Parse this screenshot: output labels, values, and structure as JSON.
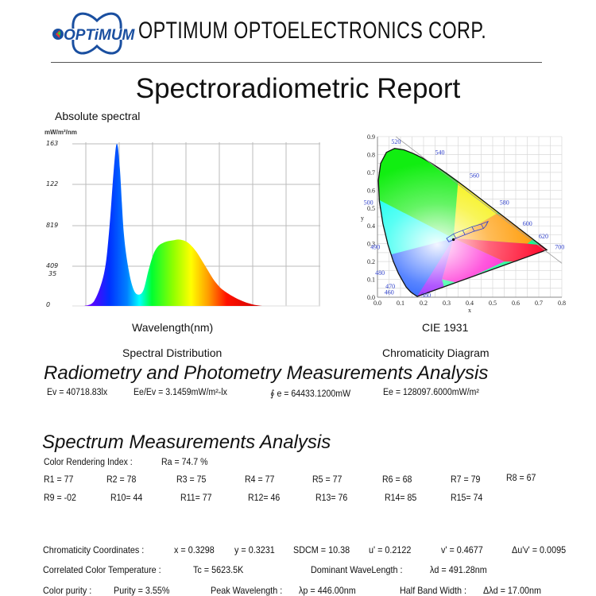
{
  "header": {
    "logo_text": "OPTiMUM",
    "company_name": "OPTIMUM  OPTOELECTRONICS  CORP.",
    "report_title": "Spectroradiometric Report"
  },
  "colors": {
    "logo_blue": "#1a4fa0",
    "wavelength_label": "#3344cc",
    "grid": "#bbbbbb"
  },
  "chart_data": [
    {
      "type": "area",
      "title": "Absolute spectral",
      "ylabel": "mW/m²/nm",
      "xlabel": "Wavelength(nm)",
      "caption": "Spectral Distribution",
      "ytick_labels": [
        "163",
        "122",
        "819",
        "409",
        "35",
        "0"
      ],
      "xlim": [
        380,
        780
      ],
      "ylim_relative": [
        0,
        1
      ],
      "grid": true,
      "x": [
        380,
        400,
        420,
        430,
        440,
        446,
        452,
        460,
        470,
        480,
        490,
        500,
        510,
        520,
        530,
        540,
        550,
        560,
        570,
        580,
        590,
        600,
        610,
        620,
        630,
        640,
        650,
        660,
        680,
        700,
        720,
        740
      ],
      "relative_values": [
        0.0,
        0.03,
        0.2,
        0.45,
        0.85,
        1.0,
        0.85,
        0.45,
        0.22,
        0.1,
        0.07,
        0.1,
        0.22,
        0.32,
        0.37,
        0.39,
        0.4,
        0.405,
        0.41,
        0.405,
        0.39,
        0.36,
        0.32,
        0.27,
        0.22,
        0.17,
        0.13,
        0.1,
        0.06,
        0.03,
        0.01,
        0.0
      ],
      "peak_wavelength_nm": 446
    },
    {
      "type": "scatter",
      "title": "CIE 1931",
      "caption": "Chromaticity Diagram",
      "xlabel": "x",
      "ylabel": "y",
      "xlim": [
        0.0,
        0.8
      ],
      "ylim": [
        0.0,
        0.9
      ],
      "xticks": [
        "0.0",
        "0.1",
        "0.2",
        "0.3",
        "0.4",
        "0.5",
        "0.6",
        "0.7",
        "0.8"
      ],
      "yticks": [
        "0.0",
        "0.1",
        "0.2",
        "0.3",
        "0.4",
        "0.5",
        "0.6",
        "0.7",
        "0.8",
        "0.9"
      ],
      "wavelength_labels": [
        "520",
        "540",
        "560",
        "580",
        "600",
        "620",
        "700",
        "500",
        "490",
        "480",
        "470",
        "460",
        "380"
      ],
      "grid": true,
      "measured_point": {
        "x": 0.3298,
        "y": 0.3231
      }
    }
  ],
  "radiometry": {
    "heading": "Radiometry and Photometry Measurements Analysis",
    "items": [
      "Ev = 40718.83lx",
      "Ee/Ev = 3.1459mW/m²-lx",
      "∮ e = 64433.1200mW",
      "Ee = 128097.6000mW/m²"
    ]
  },
  "spectrum": {
    "heading": "Spectrum Measurements Analysis",
    "cri_label": "Color Rendering Index :",
    "cri_value": "Ra = 74.7 %",
    "r_row1": [
      "R1 = 77",
      "R2 = 78",
      "R3 = 75",
      "R4 = 77",
      "R5 = 77",
      "R6 = 68",
      "R7 = 79",
      "R8 = 67"
    ],
    "r_row2": [
      "R9 = -02",
      "R10= 44",
      "R11= 77",
      "R12= 46",
      "R13= 76",
      "R14= 85",
      "R15= 74"
    ],
    "chromaticity_label": "Chromaticity Coordinates :",
    "chromaticity": [
      "x = 0.3298",
      "y = 0.3231",
      "SDCM = 10.38",
      "u' = 0.2122",
      "v' = 0.4677",
      "Δu'v' = 0.0095"
    ],
    "cct_label": "Correlated Color Temperature :",
    "cct_value": "Tc = 5623.5K",
    "dominant_label": "Dominant WaveLength :",
    "dominant_value": "λd = 491.28nm",
    "purity_label": "Color purity :",
    "purity_value": "Purity = 3.55%",
    "peak_label": "Peak Wavelength :",
    "peak_value": "λp = 446.00nm",
    "hbw_label": "Half Band Width :",
    "hbw_value": "Δλd = 17.00nm"
  }
}
